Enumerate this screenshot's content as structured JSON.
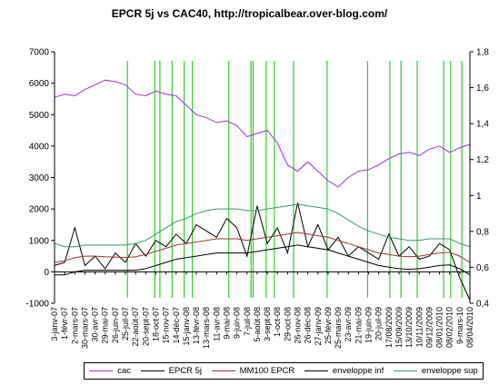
{
  "chart_data": {
    "type": "line",
    "title": "EPCR 5j vs CAC40, http://tropicalbear.over-blog.com/",
    "y_left": {
      "ylim": [
        -1000,
        7000
      ],
      "ticks": [
        "-1000",
        "0",
        "1000",
        "2000",
        "3000",
        "4000",
        "5000",
        "6000",
        "7000"
      ]
    },
    "y_right": {
      "ylim": [
        0.4,
        1.8
      ],
      "ticks": [
        "0,4",
        "0,6",
        "0,8",
        "1",
        "1,2",
        "1,4",
        "1,6",
        "1,8"
      ]
    },
    "categories": [
      "3-janv-07",
      "1-févr-07",
      "2-mars-07",
      "30-mars-07",
      "30-avr-07",
      "29-mai-07",
      "26-juin-07",
      "25-juil-07",
      "22-août-07",
      "20-sept-07",
      "18-oct-07",
      "15-nov-07",
      "14-déc-07",
      "15-janv-08",
      "13-févr-08",
      "13-mars-08",
      "11-avr-08",
      "9-mai-08",
      "9-juin-08",
      "7-juil-08",
      "5-août-08",
      "3-sept-08",
      "1-oct-08",
      "29-oct-08",
      "26-nov-08",
      "26-déc-08",
      "27-janv-09",
      "25-févr-09",
      "25-mars-09",
      "23-avr-09",
      "21-mai-09",
      "19-juin-09",
      "20-juil-09",
      "17/08/2009",
      "15/09/2009",
      "13/10/2009",
      "10/11/2009",
      "09/12/2009",
      "08/01/2010",
      "08/02/2010",
      "9-mars-10",
      "08/04/2010"
    ],
    "series": [
      {
        "name": "cac",
        "color": "#9933cc",
        "axis": "left",
        "values": [
          5550,
          5650,
          5600,
          5800,
          5950,
          6100,
          6050,
          5950,
          5650,
          5600,
          5750,
          5650,
          5600,
          5300,
          5000,
          4900,
          4750,
          4800,
          4650,
          4300,
          4400,
          4500,
          4100,
          3400,
          3200,
          3500,
          3200,
          2900,
          2700,
          3000,
          3200,
          3250,
          3400,
          3600,
          3750,
          3800,
          3700,
          3900,
          4000,
          3800,
          3950,
          4050
        ]
      },
      {
        "name": "EPCR 5j",
        "color": "#000000",
        "axis": "left",
        "values": [
          200,
          300,
          1400,
          200,
          500,
          100,
          600,
          300,
          900,
          500,
          1000,
          800,
          1200,
          900,
          1500,
          1300,
          1100,
          1700,
          1400,
          500,
          2100,
          900,
          1400,
          600,
          2200,
          800,
          1500,
          700,
          1100,
          500,
          800,
          600,
          400,
          1200,
          500,
          800,
          400,
          500,
          900,
          700,
          -200,
          -900
        ]
      },
      {
        "name": "MM100 EPCR",
        "color": "#993333",
        "axis": "left",
        "values": [
          300,
          350,
          450,
          500,
          500,
          480,
          470,
          450,
          480,
          550,
          650,
          750,
          850,
          900,
          950,
          1000,
          1050,
          1050,
          1050,
          1000,
          1050,
          1100,
          1150,
          1200,
          1250,
          1200,
          1150,
          1100,
          1000,
          900,
          800,
          700,
          600,
          550,
          500,
          480,
          500,
          550,
          600,
          620,
          500,
          300
        ]
      },
      {
        "name": "enveloppe inf",
        "color": "#000000",
        "axis": "left",
        "values": [
          -100,
          -100,
          0,
          50,
          50,
          50,
          50,
          50,
          50,
          100,
          200,
          300,
          400,
          450,
          500,
          550,
          600,
          600,
          600,
          600,
          650,
          700,
          750,
          800,
          850,
          800,
          750,
          700,
          600,
          500,
          400,
          300,
          200,
          150,
          100,
          80,
          100,
          150,
          200,
          220,
          100,
          -100
        ]
      },
      {
        "name": "enveloppe sup",
        "color": "#339966",
        "axis": "left",
        "values": [
          900,
          800,
          800,
          850,
          850,
          850,
          850,
          850,
          900,
          1000,
          1200,
          1400,
          1600,
          1700,
          1850,
          1950,
          2000,
          2000,
          2000,
          1950,
          1950,
          2000,
          2050,
          2100,
          2150,
          2100,
          2050,
          2000,
          1850,
          1650,
          1450,
          1300,
          1200,
          1100,
          1050,
          1000,
          1000,
          1050,
          1050,
          1050,
          900,
          800
        ]
      }
    ],
    "signal_line_positions": [
      7.2,
      9.9,
      10.4,
      11.6,
      12.8,
      13.6,
      17.2,
      19.4,
      19.6,
      20.9,
      21.7,
      23.6,
      26.9,
      30.9,
      33.1,
      34.2,
      35.8,
      38.4,
      39.1,
      40.2
    ],
    "signal_line_color": "#33cc33",
    "grid": false,
    "legend": {
      "position": "bottom",
      "items": [
        "cac",
        "EPCR 5j",
        "MM100 EPCR",
        "enveloppe inf",
        "enveloppe sup"
      ]
    }
  }
}
